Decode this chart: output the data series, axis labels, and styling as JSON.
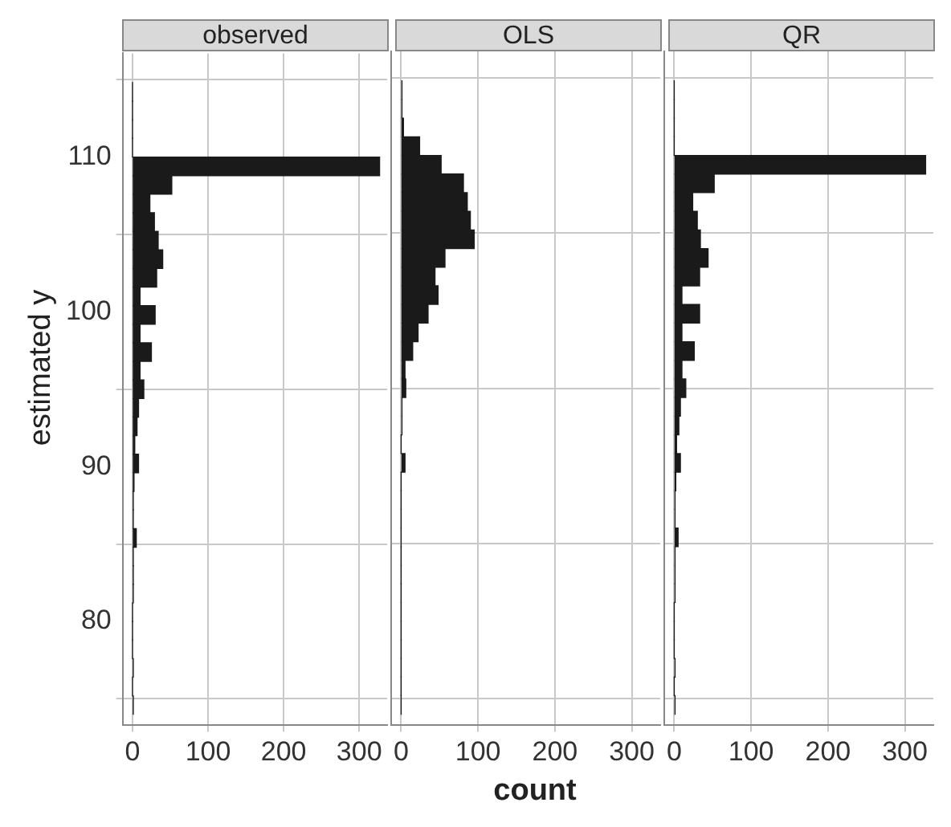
{
  "chart_data": [
    {
      "type": "histogram",
      "title": "observed",
      "ylabel": "estimated y",
      "orientation": "horizontal",
      "color": "#1a1a1a",
      "bins": [
        74,
        75.2,
        76.4,
        77.6,
        78.8,
        80,
        81.2,
        82.4,
        83.6,
        84.8,
        86,
        87.2,
        88.4,
        89.6,
        90.8,
        92,
        93.2,
        94.4,
        95.6,
        96.8,
        98,
        99.2,
        100.4,
        101.6,
        102.8,
        104,
        105.2,
        106.4,
        107.6,
        108.8,
        110,
        111.2,
        112.4,
        113.6,
        114.8
      ],
      "values": [
        1,
        0,
        1,
        0,
        0,
        0,
        1,
        1,
        1,
        5,
        1,
        1,
        2,
        8,
        3,
        6,
        8,
        15,
        10,
        25,
        10,
        30,
        10,
        32,
        40,
        34,
        29,
        23,
        52,
        327,
        0,
        0,
        0,
        0
      ],
      "xlim": [
        -13,
        337
      ],
      "xticks": [
        0,
        100,
        200,
        300
      ],
      "ylim": [
        73.3,
        116.7
      ],
      "yticks": [
        80,
        90,
        100,
        110
      ],
      "grid": true
    },
    {
      "type": "histogram",
      "title": "OLS",
      "xlabel": "count",
      "orientation": "horizontal",
      "color": "#1a1a1a",
      "bins": [
        74,
        75.2,
        76.4,
        77.6,
        78.8,
        80,
        81.2,
        82.4,
        83.6,
        84.8,
        86,
        87.2,
        88.4,
        89.6,
        90.8,
        92,
        93.2,
        94.4,
        95.6,
        96.8,
        98,
        99.2,
        100.4,
        101.6,
        102.8,
        104,
        105.2,
        106.4,
        107.6,
        108.8,
        110,
        111.2,
        112.4,
        113.6,
        114.8
      ],
      "values": [
        0,
        0,
        0,
        0,
        0,
        0,
        0,
        0,
        0,
        0,
        0,
        0,
        0,
        5,
        0,
        1,
        1,
        6,
        5,
        15,
        22,
        35,
        48,
        44,
        57,
        95,
        90,
        86,
        81,
        52,
        24,
        3,
        1,
        1
      ],
      "xlim": [
        -13,
        337
      ],
      "xticks": [
        0,
        100,
        200,
        300
      ],
      "ylim": [
        73.3,
        116.7
      ],
      "yticks": [
        80,
        90,
        100,
        110
      ],
      "grid": true,
      "tick_labels": "x"
    },
    {
      "type": "histogram",
      "title": "QR",
      "orientation": "horizontal",
      "color": "#1a1a1a",
      "bins": [
        74,
        75.2,
        76.4,
        77.6,
        78.8,
        80,
        81.2,
        82.4,
        83.6,
        84.8,
        86,
        87.2,
        88.4,
        89.6,
        90.8,
        92,
        93.2,
        94.4,
        95.6,
        96.8,
        98,
        99.2,
        100.4,
        101.6,
        102.8,
        104,
        105.2,
        106.4,
        107.6,
        108.8,
        110,
        111.2,
        112.4,
        113.6,
        114.8
      ],
      "values": [
        1,
        0,
        1,
        0,
        0,
        0,
        1,
        1,
        1,
        5,
        1,
        1,
        2,
        8,
        3,
        6,
        8,
        15,
        10,
        26,
        10,
        33,
        10,
        33,
        44,
        34,
        30,
        24,
        52,
        327,
        0,
        0,
        0,
        0
      ],
      "xlim": [
        -13,
        337
      ],
      "xticks": [
        0,
        100,
        200,
        300
      ],
      "ylim": [
        73.3,
        116.7
      ],
      "yticks": [
        80,
        90,
        100,
        110
      ],
      "grid": true,
      "tick_labels": "x"
    }
  ]
}
